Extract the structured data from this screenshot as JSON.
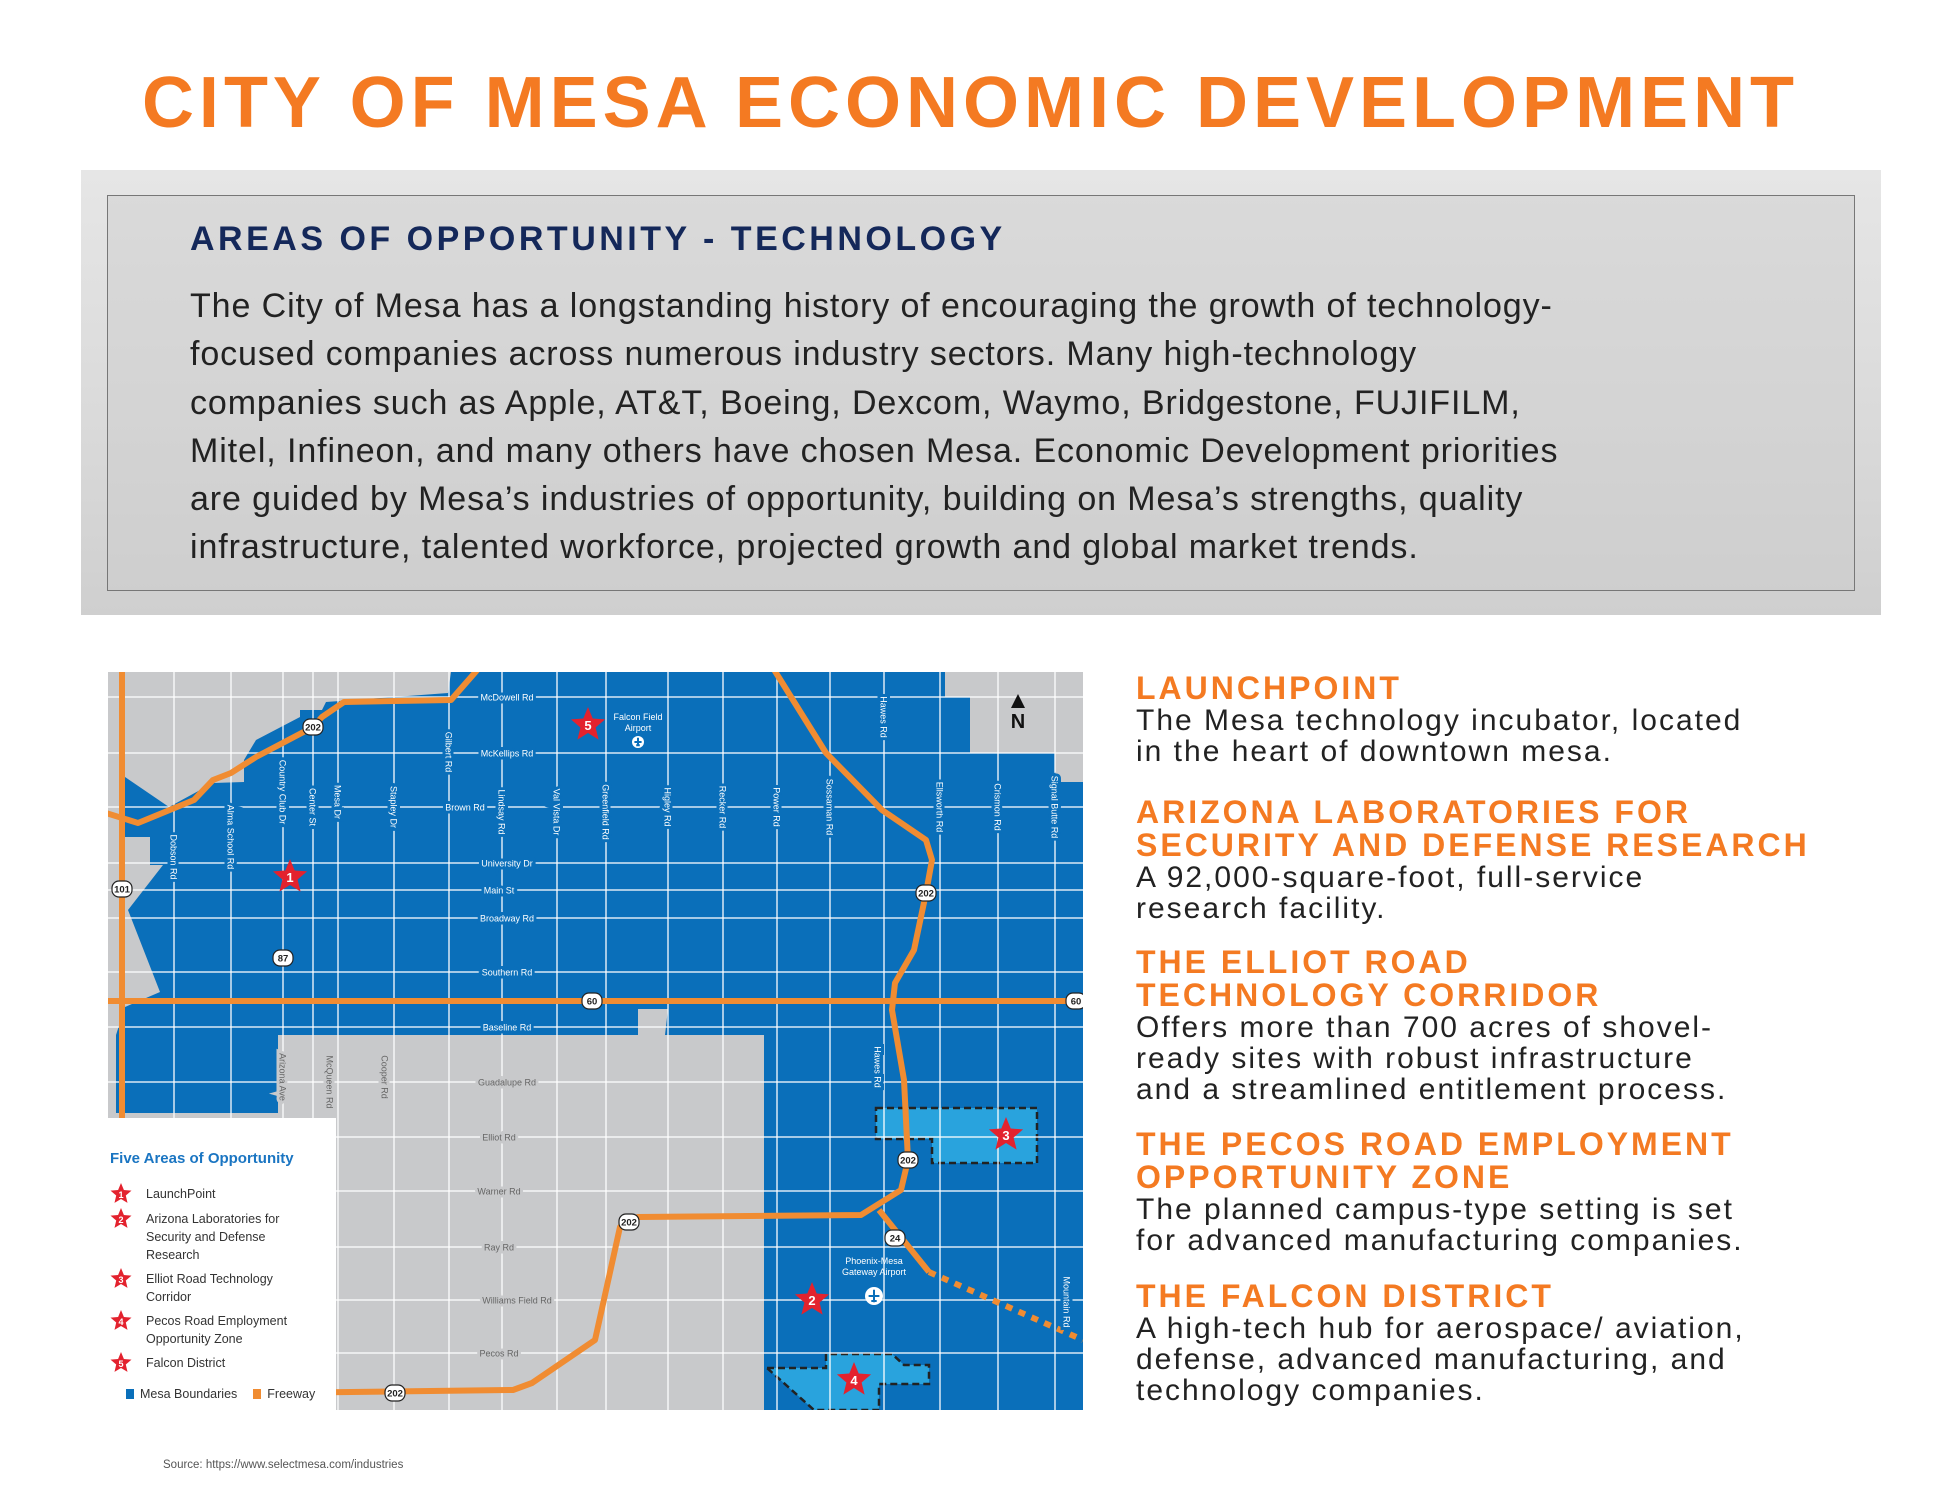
{
  "title": "CITY OF MESA ECONOMIC DEVELOPMENT",
  "hero": {
    "heading": "AREAS OF OPPORTUNITY - TECHNOLOGY",
    "lines": [
      "The City of Mesa has a longstanding history of encouraging the growth of technology-",
      "focused companies across numerous industry sectors. Many high-technology",
      "companies such as Apple, AT&T, Boeing, Dexcom, Waymo, Bridgestone, FUJIFILM,",
      "Mitel, Infineon, and many others have chosen Mesa. Economic Development priorities",
      "are guided by Mesa’s industries of opportunity, building on Mesa’s strengths, quality",
      "infrastructure, talented workforce, projected growth and global market trends."
    ]
  },
  "map": {
    "colors": {
      "mesa": "#0a6fba",
      "zone": "#29a3dd",
      "gray": "#c8c9cb",
      "freeway": "#f08c32",
      "star": "#e3222e"
    },
    "north_label": "N",
    "ew_roads": [
      "McDowell Rd",
      "McKellips Rd",
      "Brown Rd",
      "University Dr",
      "Main St",
      "Broadway Rd",
      "Southern Rd",
      "Baseline Rd",
      "Guadalupe Rd",
      "Elliot Rd",
      "Warner Rd",
      "Ray Rd",
      "Williams Field Rd",
      "Pecos Rd"
    ],
    "ns_roads": [
      "Dobson Rd",
      "Alma School Rd",
      "Country Club Dr",
      "Center St",
      "Mesa Dr",
      "Stapley Dr",
      "Gilbert Rd",
      "Lindsay Rd",
      "Val Vista Dr",
      "Greenfield Rd",
      "Higley Rd",
      "Recker Rd",
      "Power Rd",
      "Sossaman Rd",
      "Hawes Rd",
      "Ellsworth Rd",
      "Crismon Rd",
      "Signal Butte Rd",
      "Arizona Ave",
      "McQueen Rd",
      "Cooper Rd",
      "Hawes Rd",
      "Mountain Rd"
    ],
    "shields": [
      "202",
      "202",
      "202",
      "202",
      "202",
      "101",
      "87",
      "60",
      "60",
      "24"
    ],
    "airports": [
      {
        "line1": "Falcon Field",
        "line2": "Airport"
      },
      {
        "line1": "Phoenix-Mesa",
        "line2": "Gateway Airport"
      }
    ],
    "stars": [
      "1",
      "2",
      "3",
      "4",
      "5"
    ],
    "legend": {
      "title": "Five Areas of Opportunity",
      "items": [
        {
          "num": "1",
          "label": "LaunchPoint"
        },
        {
          "num": "2",
          "label": "Arizona Laboratories for Security and Defense Research"
        },
        {
          "num": "3",
          "label": "Elliot Road Technology Corridor"
        },
        {
          "num": "4",
          "label": "Pecos Road Employment Opportunity Zone"
        },
        {
          "num": "5",
          "label": "Falcon District"
        }
      ],
      "key_mesa": "Mesa Boundaries",
      "key_freeway": "Freeway"
    }
  },
  "source": "Source: https://www.selectmesa.com/industries",
  "areas": [
    {
      "heading": [
        "LAUNCHPOINT"
      ],
      "body": [
        "The Mesa technology incubator, located",
        "in the heart of downtown mesa."
      ]
    },
    {
      "heading": [
        "ARIZONA LABORATORIES FOR",
        "SECURITY AND DEFENSE RESEARCH"
      ],
      "body": [
        "A 92,000-square-foot, full-service",
        "research facility."
      ]
    },
    {
      "heading": [
        "THE ELLIOT ROAD",
        "TECHNOLOGY CORRIDOR"
      ],
      "body": [
        "Offers more than 700 acres of shovel-",
        "ready sites with robust infrastructure",
        "and a streamlined entitlement process."
      ]
    },
    {
      "heading": [
        "THE PECOS ROAD EMPLOYMENT",
        "OPPORTUNITY ZONE"
      ],
      "body": [
        "The planned campus-type setting is set",
        "for advanced manufacturing companies."
      ]
    },
    {
      "heading": [
        "THE FALCON DISTRICT"
      ],
      "body": [
        "A high-tech hub for aerospace/ aviation,",
        "defense, advanced manufacturing, and",
        "technology companies."
      ]
    }
  ]
}
